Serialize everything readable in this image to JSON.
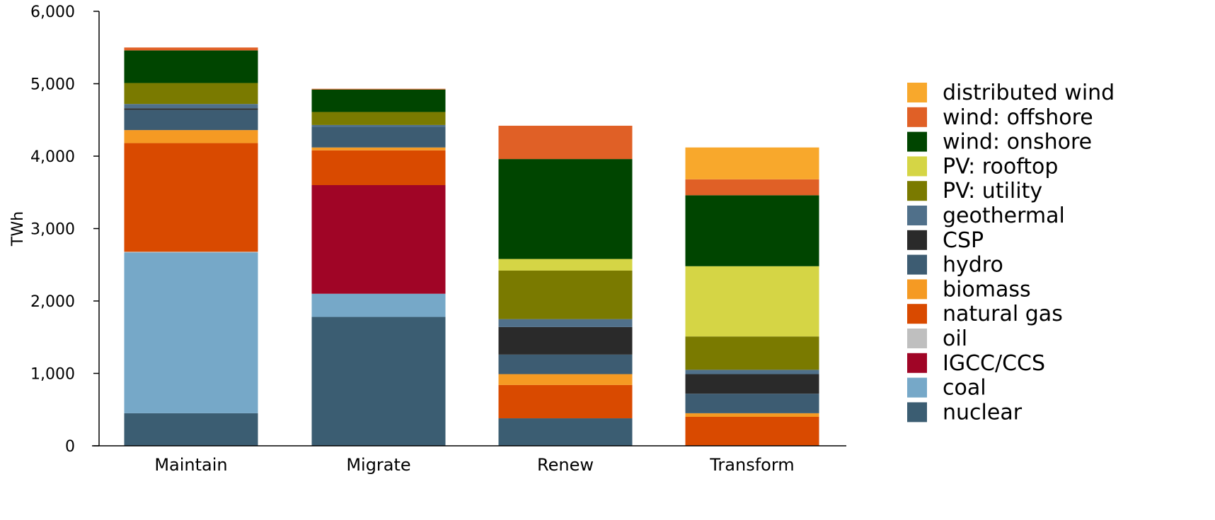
{
  "chart_data": {
    "type": "bar",
    "stacked": true,
    "title": "",
    "xlabel": "",
    "ylabel": "TWh",
    "ylim": [
      0,
      6000
    ],
    "yticks": [
      "0",
      "1,000",
      "2,000",
      "3,000",
      "4,000",
      "5,000",
      "6,000"
    ],
    "ytick_values": [
      0,
      1000,
      2000,
      3000,
      4000,
      5000,
      6000
    ],
    "categories": [
      "Maintain",
      "Migrate",
      "Renew",
      "Transform"
    ],
    "legend_position": "right",
    "series": [
      {
        "name": "nuclear",
        "color": "#3b5d72",
        "values": [
          450,
          1780,
          380,
          0
        ]
      },
      {
        "name": "coal",
        "color": "#76a8c8",
        "values": [
          2220,
          320,
          0,
          0
        ]
      },
      {
        "name": "IGCC/CCS",
        "color": "#a00526",
        "values": [
          0,
          1500,
          0,
          0
        ]
      },
      {
        "name": "oil",
        "color": "#bfbfbf",
        "values": [
          10,
          0,
          0,
          0
        ]
      },
      {
        "name": "natural gas",
        "color": "#d94a00",
        "values": [
          1500,
          480,
          460,
          400
        ]
      },
      {
        "name": "biomass",
        "color": "#f59a23",
        "values": [
          180,
          40,
          150,
          50
        ]
      },
      {
        "name": "hydro",
        "color": "#3d5c72",
        "values": [
          280,
          280,
          270,
          270
        ]
      },
      {
        "name": "CSP",
        "color": "#2a2a2a",
        "values": [
          20,
          0,
          380,
          270
        ]
      },
      {
        "name": "geothermal",
        "color": "#50708a",
        "values": [
          60,
          30,
          110,
          60
        ]
      },
      {
        "name": "PV: utility",
        "color": "#7a7a00",
        "values": [
          290,
          180,
          670,
          460
        ]
      },
      {
        "name": "PV: rooftop",
        "color": "#d5d545",
        "values": [
          0,
          0,
          160,
          970
        ]
      },
      {
        "name": "wind: onshore",
        "color": "#004500",
        "values": [
          450,
          310,
          1380,
          980
        ]
      },
      {
        "name": "wind: offshore",
        "color": "#e06026",
        "values": [
          40,
          10,
          460,
          220
        ]
      },
      {
        "name": "distributed wind",
        "color": "#f8a82c",
        "values": [
          0,
          0,
          0,
          440
        ]
      }
    ],
    "legend_order": [
      "distributed wind",
      "wind: offshore",
      "wind: onshore",
      "PV: rooftop",
      "PV: utility",
      "geothermal",
      "CSP",
      "hydro",
      "biomass",
      "natural gas",
      "oil",
      "IGCC/CCS",
      "coal",
      "nuclear"
    ]
  }
}
